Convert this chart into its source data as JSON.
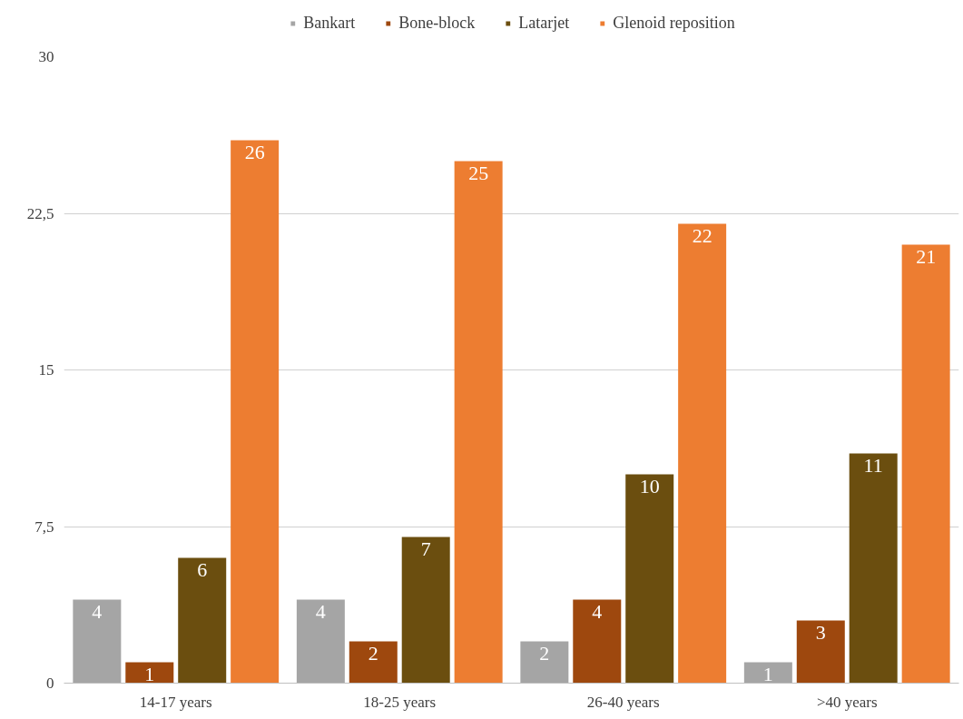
{
  "chart_data": {
    "type": "bar",
    "categories": [
      "14-17 years",
      "18-25 years",
      "26-40 years",
      ">40 years"
    ],
    "series": [
      {
        "name": "Bankart",
        "color": "#a5a5a5",
        "values": [
          4,
          4,
          2,
          1
        ]
      },
      {
        "name": "Bone-block",
        "color": "#9e480e",
        "values": [
          1,
          2,
          4,
          3
        ]
      },
      {
        "name": "Latarjet",
        "color": "#6b4e0f",
        "values": [
          6,
          7,
          10,
          11
        ]
      },
      {
        "name": "Glenoid reposition",
        "color": "#ed7d31",
        "values": [
          26,
          25,
          22,
          21
        ]
      }
    ],
    "ylim": [
      0,
      30
    ],
    "yticks": [
      0,
      {
        "value": 7.5,
        "label": "7,5"
      },
      15,
      {
        "value": 22.5,
        "label": "22,5"
      },
      30
    ],
    "grid": "y",
    "legend": "top",
    "data_labels": true
  }
}
